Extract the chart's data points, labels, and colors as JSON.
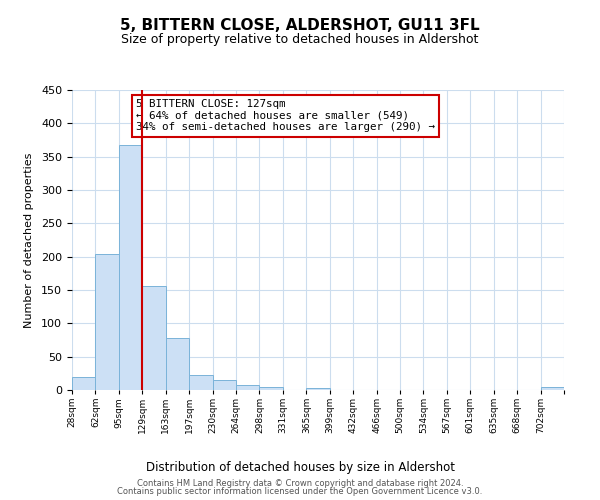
{
  "title": "5, BITTERN CLOSE, ALDERSHOT, GU11 3FL",
  "subtitle": "Size of property relative to detached houses in Aldershot",
  "xlabel": "Distribution of detached houses by size in Aldershot",
  "ylabel": "Number of detached properties",
  "bar_color": "#cce0f5",
  "bar_edge_color": "#7ab3d9",
  "bin_labels": [
    "28sqm",
    "62sqm",
    "95sqm",
    "129sqm",
    "163sqm",
    "197sqm",
    "230sqm",
    "264sqm",
    "298sqm",
    "331sqm",
    "365sqm",
    "399sqm",
    "432sqm",
    "466sqm",
    "500sqm",
    "534sqm",
    "567sqm",
    "601sqm",
    "635sqm",
    "668sqm",
    "702sqm"
  ],
  "bar_heights": [
    20,
    204,
    367,
    156,
    78,
    23,
    15,
    8,
    4,
    0,
    3,
    0,
    0,
    0,
    0,
    0,
    0,
    0,
    0,
    0,
    4
  ],
  "ylim": [
    0,
    450
  ],
  "yticks": [
    0,
    50,
    100,
    150,
    200,
    250,
    300,
    350,
    400,
    450
  ],
  "property_line_x": 3,
  "property_line_color": "#cc0000",
  "annotation_title": "5 BITTERN CLOSE: 127sqm",
  "annotation_line1": "← 64% of detached houses are smaller (549)",
  "annotation_line2": "34% of semi-detached houses are larger (290) →",
  "annotation_box_color": "#ffffff",
  "annotation_box_edge": "#cc0000",
  "footer1": "Contains HM Land Registry data © Crown copyright and database right 2024.",
  "footer2": "Contains public sector information licensed under the Open Government Licence v3.0.",
  "background_color": "#ffffff",
  "grid_color": "#ccddee"
}
